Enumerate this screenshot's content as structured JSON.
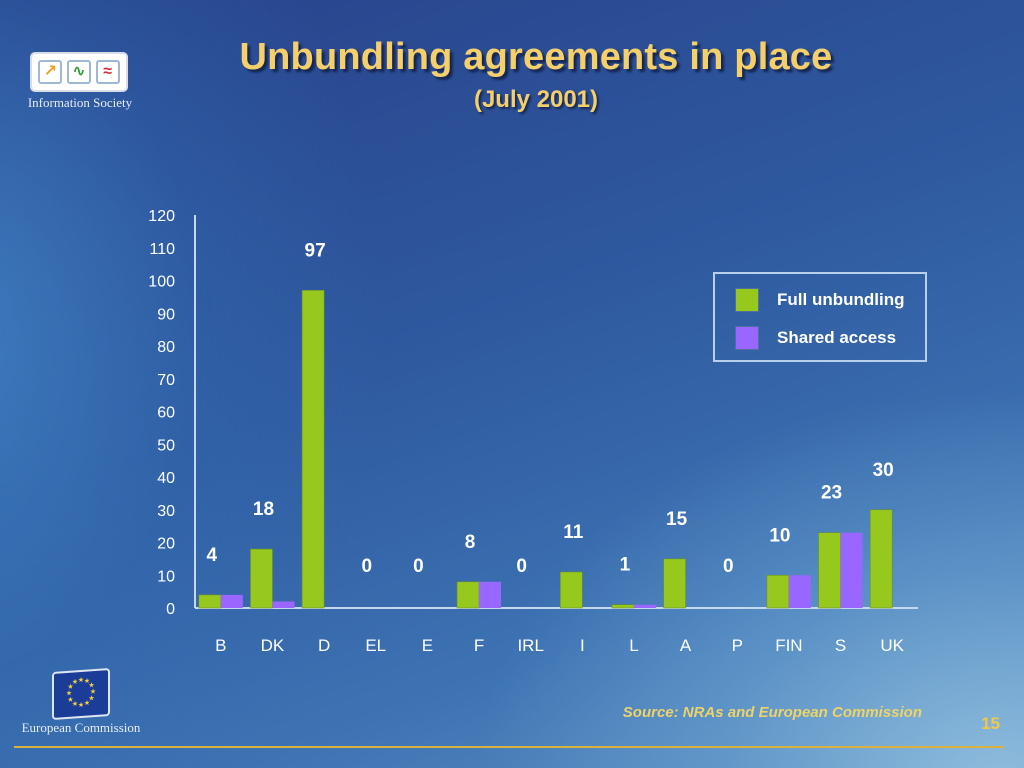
{
  "slide": {
    "title": "Unbundling agreements in place",
    "subtitle": "(July 2001)",
    "source": "Source: NRAs and European Commission",
    "page_number": "15",
    "top_logo_caption": "Information Society",
    "bottom_logo_caption": "European Commission",
    "top_logo_icons": [
      "arrow-up-right-icon",
      "wave-check-icon",
      "approx-equal-icon"
    ]
  },
  "colors": {
    "full_unbundling": "#96c81e",
    "shared_access": "#9966ff",
    "title": "#f5cf6a",
    "axis_text": "#ffffff"
  },
  "chart_data": {
    "type": "bar",
    "title": "Unbundling agreements in place",
    "subtitle": "(July 2001)",
    "xlabel": "",
    "ylabel": "",
    "categories": [
      "B",
      "DK",
      "D",
      "EL",
      "E",
      "F",
      "IRL",
      "I",
      "L",
      "A",
      "P",
      "FIN",
      "S",
      "UK"
    ],
    "series": [
      {
        "name": "Full unbundling",
        "values": [
          4,
          18,
          97,
          0,
          0,
          8,
          0,
          11,
          1,
          15,
          0,
          10,
          23,
          30
        ]
      },
      {
        "name": "Shared access",
        "values": [
          4,
          2,
          0,
          0,
          0,
          8,
          0,
          0,
          1,
          0,
          0,
          10,
          23,
          0
        ]
      }
    ],
    "data_labels": [
      "4",
      "18",
      "97",
      "0",
      "0",
      "8",
      "0",
      "11",
      "1",
      "15",
      "0",
      "10",
      "23",
      "30"
    ],
    "yticks": [
      0,
      10,
      20,
      30,
      40,
      50,
      60,
      70,
      80,
      90,
      100,
      110,
      120
    ],
    "ylim": [
      0,
      120
    ],
    "grid": false,
    "legend_position": "right"
  }
}
